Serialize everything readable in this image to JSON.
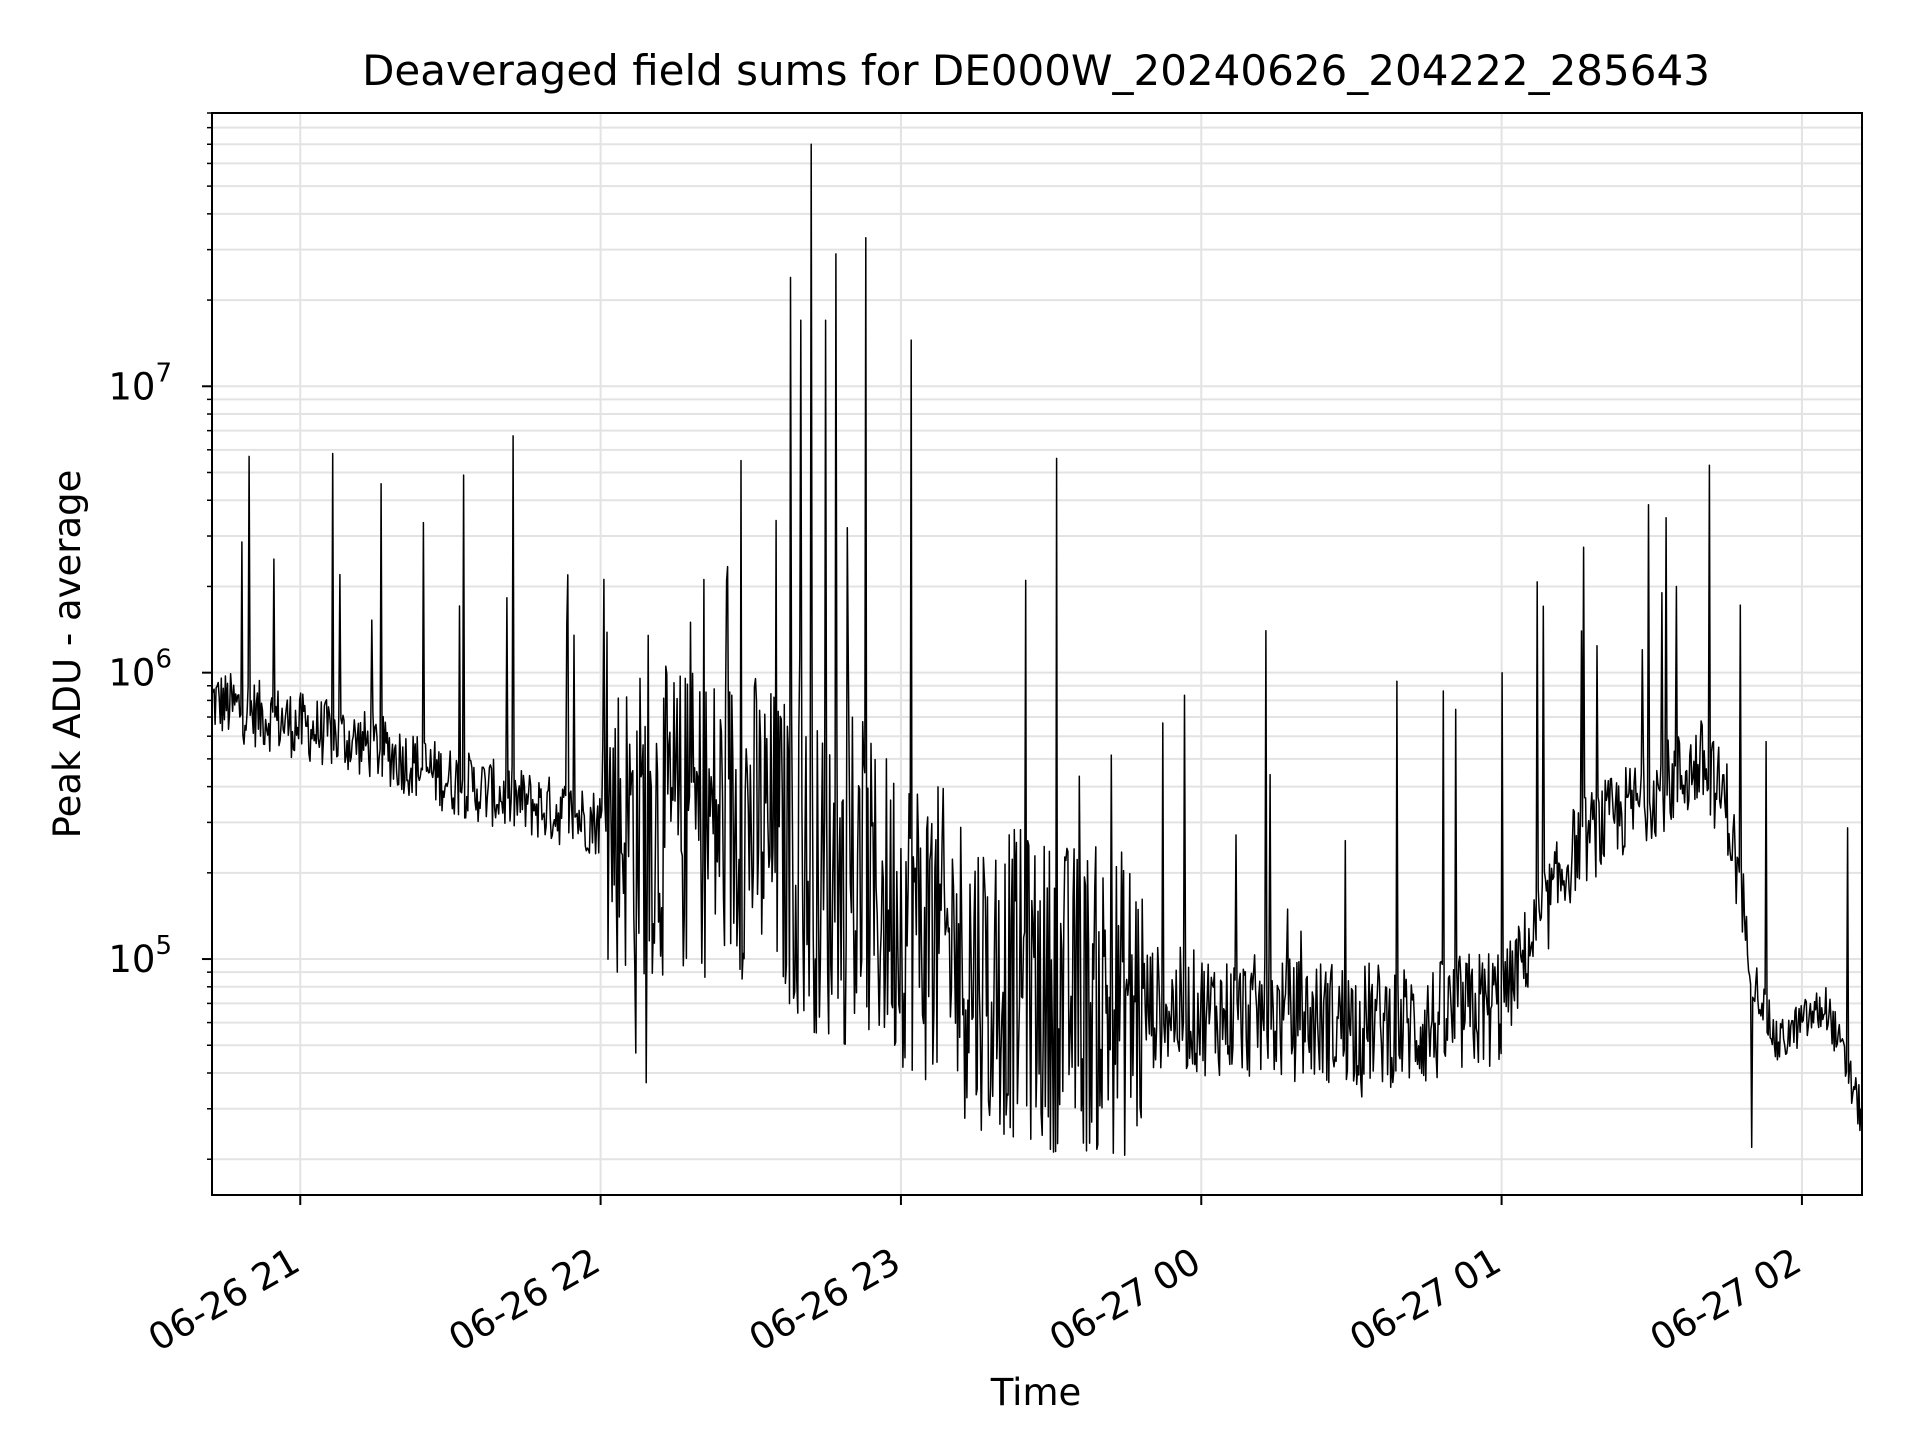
{
  "chart_data": {
    "type": "line",
    "title": "Deaveraged field sums for DE000W_20240626_204222_285643",
    "xlabel": "Time",
    "ylabel": "Peak ADU - average",
    "yscale": "log",
    "grid": true,
    "x_ticks": [
      "06-26 21",
      "06-26 22",
      "06-26 23",
      "06-27 00",
      "06-27 01",
      "06-27 02"
    ],
    "y_ticks": [
      {
        "base": "10",
        "exp": "5",
        "value": 100000
      },
      {
        "base": "10",
        "exp": "6",
        "value": 1000000
      },
      {
        "base": "10",
        "exp": "7",
        "value": 10000000
      }
    ],
    "xlim": [
      "2024-06-26 20:42:22",
      "2024-06-27 02:12:00"
    ],
    "ylim": [
      15000,
      90000000
    ],
    "series": [
      {
        "color": "#000000",
        "x": [
          "2024-06-26 20:42",
          "2024-06-26 21:00",
          "2024-06-26 21:15",
          "2024-06-26 21:30",
          "2024-06-26 21:45",
          "2024-06-26 22:00",
          "2024-06-26 22:15",
          "2024-06-26 22:30",
          "2024-06-26 22:45",
          "2024-06-26 23:00",
          "2024-06-26 23:15",
          "2024-06-26 23:30",
          "2024-06-26 23:45",
          "2024-06-27 00:00",
          "2024-06-27 00:15",
          "2024-06-27 00:30",
          "2024-06-27 00:45",
          "2024-06-27 01:00",
          "2024-06-27 01:15",
          "2024-06-27 01:30",
          "2024-06-27 01:40",
          "2024-06-27 01:45",
          "2024-06-27 01:50",
          "2024-06-27 01:55",
          "2024-06-27 02:00",
          "2024-06-27 02:05",
          "2024-06-27 02:12"
        ],
        "baseline": [
          800000,
          650000,
          550000,
          420000,
          350000,
          300000,
          300000,
          300000,
          180000,
          150000,
          90000,
          75000,
          70000,
          65000,
          62000,
          60000,
          58000,
          70000,
          250000,
          380000,
          480000,
          350000,
          90000,
          50000,
          60000,
          68000,
          28000
        ],
        "peaks": [
          {
            "x": "2024-06-26 21:08",
            "y": 2200000
          },
          {
            "x": "2024-06-26 22:18",
            "y": 1500000
          },
          {
            "x": "2024-06-26 22:28",
            "y": 5500000
          },
          {
            "x": "2024-06-26 22:35",
            "y": 3400000
          },
          {
            "x": "2024-06-26 22:38",
            "y": 24000000
          },
          {
            "x": "2024-06-26 22:40",
            "y": 17000000
          },
          {
            "x": "2024-06-26 22:42",
            "y": 70000000
          },
          {
            "x": "2024-06-26 22:45",
            "y": 17000000
          },
          {
            "x": "2024-06-26 22:47",
            "y": 29000000
          },
          {
            "x": "2024-06-26 22:53",
            "y": 33000000
          },
          {
            "x": "2024-06-26 23:02",
            "y": 14500000
          },
          {
            "x": "2024-06-26 23:31",
            "y": 5600000
          },
          {
            "x": "2024-06-26 23:25",
            "y": 2100000
          },
          {
            "x": "2024-06-27 00:13",
            "y": 1400000
          },
          {
            "x": "2024-06-27 01:00",
            "y": 1000000
          },
          {
            "x": "2024-06-27 01:32",
            "y": 1900000
          },
          {
            "x": "2024-06-27 01:35",
            "y": 2000000
          }
        ],
        "dips": [
          {
            "x": "2024-06-26 22:07",
            "y": 47000
          },
          {
            "x": "2024-06-26 22:09",
            "y": 37000
          },
          {
            "x": "2024-06-26 23:18",
            "y": 36000
          },
          {
            "x": "2024-06-27 00:32",
            "y": 33000
          },
          {
            "x": "2024-06-27 01:50",
            "y": 22000
          }
        ]
      }
    ]
  }
}
